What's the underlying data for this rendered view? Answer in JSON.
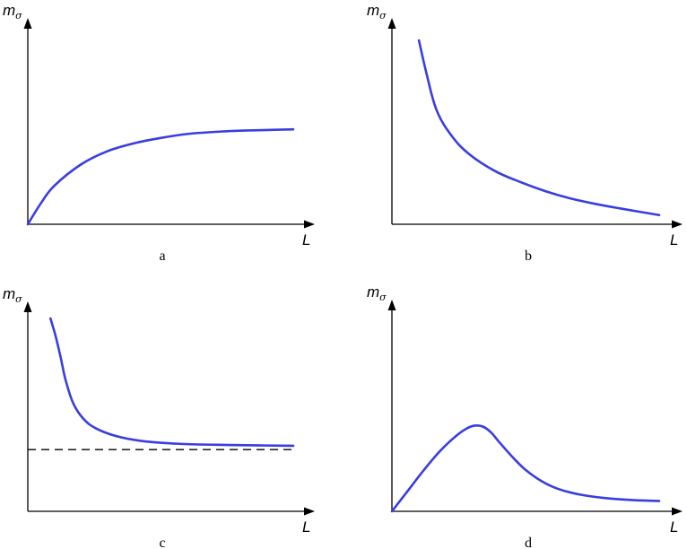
{
  "colors": {
    "curve": "#3a3ddf",
    "axis": "#000000",
    "reference": "#000000"
  },
  "chart_data": [
    {
      "panel": "a",
      "type": "line",
      "caption": "a",
      "ylabel": {
        "main": "m",
        "sub": "σ"
      },
      "xlabel": "L",
      "xlim": [
        0,
        100
      ],
      "ylim": [
        0,
        100
      ],
      "series": [
        {
          "x": [
            0,
            5,
            10,
            20,
            30,
            40,
            50,
            60,
            70,
            80,
            90,
            100
          ],
          "y": [
            0,
            16,
            29,
            45,
            55,
            61,
            65,
            68,
            69.5,
            70.5,
            71,
            71.5
          ]
        }
      ]
    },
    {
      "panel": "b",
      "type": "line",
      "caption": "b",
      "ylabel": {
        "main": "m",
        "sub": "σ"
      },
      "xlabel": "L",
      "xlim": [
        0,
        100
      ],
      "ylim": [
        0,
        100
      ],
      "series": [
        {
          "x": [
            5,
            8,
            12,
            18,
            25,
            35,
            45,
            55,
            65,
            75,
            85,
            100
          ],
          "y": [
            100,
            82,
            62,
            48,
            38,
            29,
            23,
            18,
            14,
            11,
            8.5,
            5
          ]
        }
      ]
    },
    {
      "panel": "c",
      "type": "line",
      "caption": "c",
      "ylabel": {
        "main": "m",
        "sub": "σ"
      },
      "xlabel": "L",
      "xlim": [
        0,
        100
      ],
      "ylim": [
        0,
        100
      ],
      "series": [
        {
          "x": [
            4,
            6,
            8,
            10,
            13,
            17,
            22,
            30,
            40,
            55,
            70,
            85,
            100
          ],
          "y": [
            100,
            91,
            80,
            68,
            56,
            48,
            43,
            39,
            36.5,
            35,
            34.5,
            34.2,
            34
          ]
        }
      ],
      "reference_line": {
        "y": 32,
        "style": "dashed"
      }
    },
    {
      "panel": "d",
      "type": "line",
      "caption": "d",
      "ylabel": {
        "main": "m",
        "sub": "σ"
      },
      "xlabel": "L",
      "xlim": [
        0,
        100
      ],
      "ylim": [
        0,
        100
      ],
      "series": [
        {
          "x": [
            0,
            6,
            12,
            18,
            24,
            28,
            31,
            34,
            37,
            40,
            45,
            50,
            56,
            62,
            70,
            80,
            90,
            100
          ],
          "y": [
            0,
            11,
            22,
            32,
            40,
            44,
            45.5,
            45,
            42,
            37,
            29,
            22,
            16,
            12,
            9,
            7,
            6,
            5.5
          ]
        }
      ]
    }
  ]
}
